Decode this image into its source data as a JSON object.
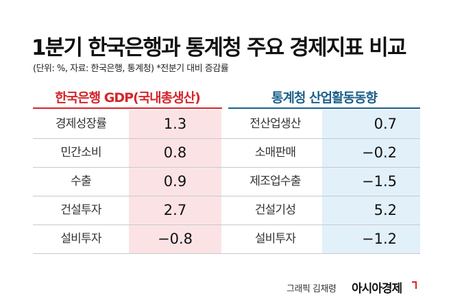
{
  "title": "1분기 한국은행과 통계청 주요 경제지표 비교",
  "subtitle": "(단위: %, 자료: 한국은행, 통계청) *전분기 대비 증감률",
  "left_header": "한국은행 GDP(국내총생산)",
  "right_header": "통계청 산업활동동향",
  "rows": [
    {
      "left_label": "경제성장률",
      "left_value": "1.3",
      "right_label": "전산업생산",
      "right_value": "0.7"
    },
    {
      "left_label": "민간소비",
      "left_value": "0.8",
      "right_label": "소매판매",
      "right_value": "−0.2"
    },
    {
      "left_label": "수출",
      "left_value": "0.9",
      "right_label": "제조업수출",
      "right_value": "−1.5"
    },
    {
      "left_label": "건설투자",
      "left_value": "2.7",
      "right_label": "건설기성",
      "right_value": "5.2"
    },
    {
      "left_label": "설비투자",
      "left_value": "−0.8",
      "right_label": "설비투자",
      "right_value": "−1.2"
    }
  ],
  "footer": {
    "credit": "그래픽 김채령",
    "brand": "아시아경제"
  },
  "colors": {
    "left_accent": "#d4262b",
    "right_accent": "#1c5f8c",
    "left_value_bg": "#fbe3e5",
    "right_value_bg": "#e2f0fa"
  }
}
